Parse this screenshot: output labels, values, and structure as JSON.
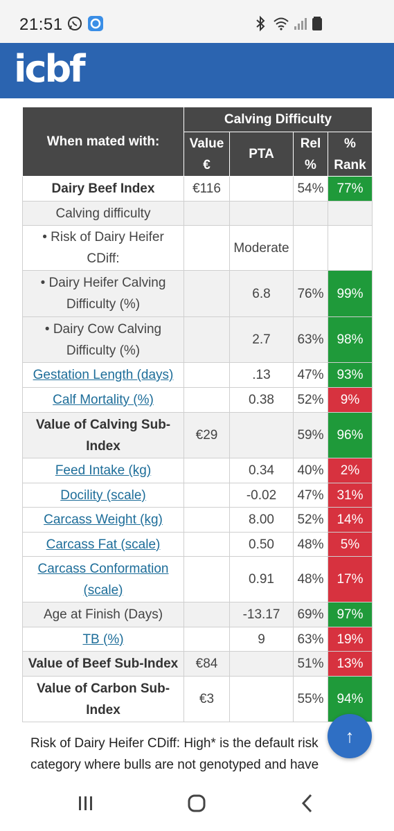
{
  "status_bar": {
    "time": "21:51"
  },
  "header": {
    "logo": "icbf"
  },
  "table": {
    "group_header": "Calving Difficulty",
    "col_when": "When mated with:",
    "col_value": "Value €",
    "col_pta": "PTA",
    "col_rel": "Rel %",
    "col_rank": "% Rank",
    "rows": [
      {
        "label": "Dairy Beef Index",
        "value": "€116",
        "pta": "",
        "rel": "54%",
        "rank": "77%"
      },
      {
        "label": "Calving difficulty",
        "value": "",
        "pta": "",
        "rel": "",
        "rank": ""
      },
      {
        "label": "• Risk of Dairy Heifer CDiff:",
        "value": "",
        "pta": "Moderate",
        "rel": "",
        "rank": ""
      },
      {
        "label": "• Dairy Heifer Calving Difficulty (%)",
        "value": "",
        "pta": "6.8",
        "rel": "76%",
        "rank": "99%"
      },
      {
        "label": "• Dairy Cow Calving Difficulty (%)",
        "value": "",
        "pta": "2.7",
        "rel": "63%",
        "rank": "98%"
      },
      {
        "label": "Gestation Length (days)",
        "value": "",
        "pta": ".13",
        "rel": "47%",
        "rank": "93%"
      },
      {
        "label": "Calf Mortality (%)",
        "value": "",
        "pta": "0.38",
        "rel": "52%",
        "rank": "9%"
      },
      {
        "label": "Value of Calving Sub-Index",
        "value": "€29",
        "pta": "",
        "rel": "59%",
        "rank": "96%"
      },
      {
        "label": "Feed Intake (kg)",
        "value": "",
        "pta": "0.34",
        "rel": "40%",
        "rank": "2%"
      },
      {
        "label": "Docility (scale)",
        "value": "",
        "pta": "-0.02",
        "rel": "47%",
        "rank": "31%"
      },
      {
        "label": "Carcass Weight (kg)",
        "value": "",
        "pta": "8.00",
        "rel": "52%",
        "rank": "14%"
      },
      {
        "label": "Carcass Fat (scale)",
        "value": "",
        "pta": "0.50",
        "rel": "48%",
        "rank": "5%"
      },
      {
        "label": "Carcass Conformation (scale)",
        "value": "",
        "pta": "0.91",
        "rel": "48%",
        "rank": "17%"
      },
      {
        "label": "Age at Finish (Days)",
        "value": "",
        "pta": "-13.17",
        "rel": "69%",
        "rank": "97%"
      },
      {
        "label": "TB (%)",
        "value": "",
        "pta": "9",
        "rel": "63%",
        "rank": "19%"
      },
      {
        "label": "Value of Beef Sub-Index",
        "value": "€84",
        "pta": "",
        "rel": "51%",
        "rank": "13%"
      },
      {
        "label": "Value of Carbon Sub-Index",
        "value": "€3",
        "pta": "",
        "rel": "55%",
        "rank": "94%"
      }
    ]
  },
  "footnote": "Risk of Dairy Heifer CDiff: High* is the default risk category where bulls are not genotyped and have",
  "colors": {
    "header_blue": "#2b64b0",
    "good": "#1f9a3a",
    "bad": "#d7323f",
    "table_header": "#474747"
  },
  "icons": [
    "whatsapp-icon",
    "app-icon",
    "bluetooth-icon",
    "wifi-icon",
    "signal-icon",
    "battery-icon",
    "scroll-top-icon",
    "recent-apps-icon",
    "home-icon",
    "back-icon"
  ]
}
